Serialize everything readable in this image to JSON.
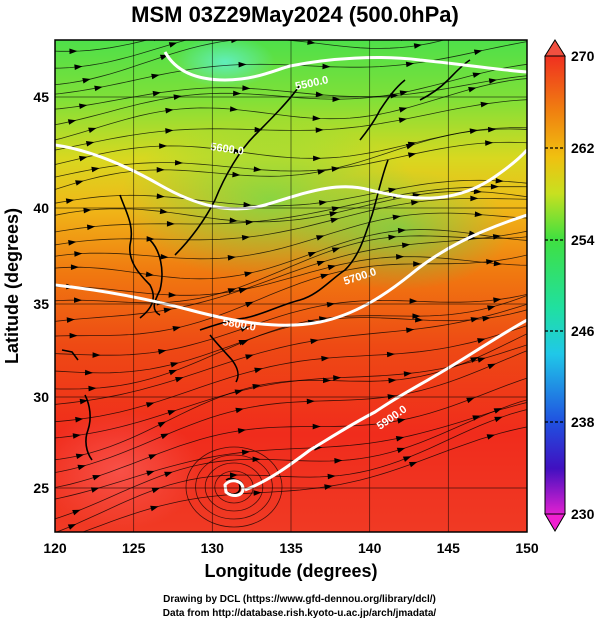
{
  "title": "MSM 03Z29May2024 (500.0hPa)",
  "xaxis": {
    "label": "Longitude (degrees)",
    "ticks": [
      "120",
      "125",
      "130",
      "135",
      "140",
      "145",
      "150"
    ]
  },
  "yaxis": {
    "label": "Latitude  (degrees)",
    "ticks": [
      "25",
      "30",
      "35",
      "40",
      "45"
    ]
  },
  "colorbar": {
    "ticks": [
      "270",
      "262",
      "254",
      "246",
      "238",
      "230"
    ],
    "min": 230,
    "max": 270
  },
  "contours": [
    {
      "label": "5500.0"
    },
    {
      "label": "5600.0"
    },
    {
      "label": "5700.0"
    },
    {
      "label": "5800.0"
    },
    {
      "label": "5900.0"
    }
  ],
  "footer": {
    "line1": "Drawing by DCL (https://www.gfd-dennou.org/library/dcl/)",
    "line2": "Data from http://database.rish.kyoto-u.ac.jp/arch/jmadata/"
  },
  "colors": {
    "warm": "#ff3300",
    "mid": "#f0c800",
    "cool": "#20e040",
    "contour": "#ffffff"
  }
}
